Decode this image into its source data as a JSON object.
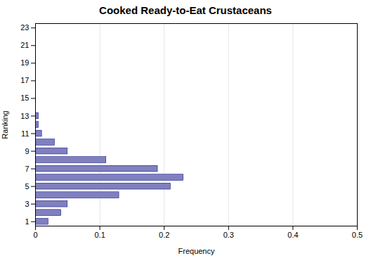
{
  "chart_data": {
    "type": "bar",
    "orientation": "horizontal",
    "title": "Cooked Ready-to-Eat Crustaceans",
    "xlabel": "Frequency",
    "ylabel": "Ranking",
    "categories": [
      1,
      2,
      3,
      4,
      5,
      6,
      7,
      8,
      9,
      10,
      11,
      12,
      13,
      14,
      15,
      16,
      17,
      18,
      19,
      20,
      21,
      22,
      23
    ],
    "values": [
      0.02,
      0.04,
      0.05,
      0.13,
      0.21,
      0.23,
      0.19,
      0.11,
      0.05,
      0.03,
      0.01,
      0.005,
      0.005,
      0.0,
      0.0,
      0.0,
      0.0,
      0.0,
      0.0,
      0.0,
      0.0,
      0.0,
      0.0
    ],
    "color": "#8080c0",
    "xlim": [
      0,
      0.5
    ],
    "xticks": [
      0,
      0.1,
      0.2,
      0.3,
      0.4,
      0.5
    ],
    "ylim": [
      0.5,
      23.5
    ],
    "yticks": [
      1,
      3,
      5,
      7,
      9,
      11,
      13,
      15,
      17,
      19,
      21,
      23
    ],
    "grid": true
  }
}
